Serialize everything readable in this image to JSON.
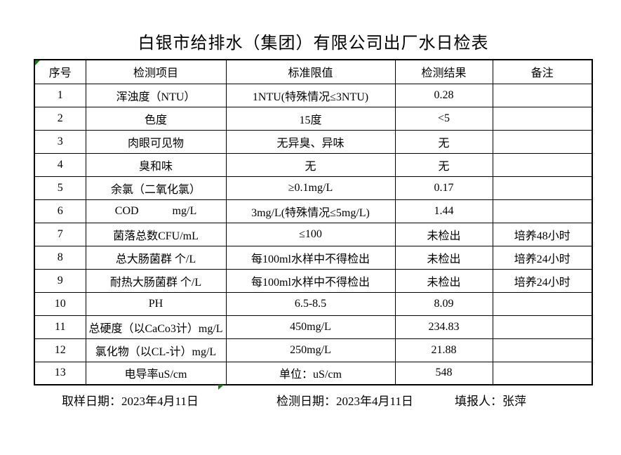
{
  "title": "白银市给排水（集团）有限公司出厂水日检表",
  "table": {
    "headers": [
      "序号",
      "检测项目",
      "标准限值",
      "检测结果",
      "备注"
    ],
    "rows": [
      {
        "no": "1",
        "item": "浑浊度（NTU）",
        "limit": "1NTU(特殊情况≤3NTU)",
        "result": "0.28",
        "note": ""
      },
      {
        "no": "2",
        "item": "色度",
        "limit": "15度",
        "result": "<5",
        "note": ""
      },
      {
        "no": "3",
        "item": "肉眼可见物",
        "limit": "无异臭、异味",
        "result": "无",
        "note": ""
      },
      {
        "no": "4",
        "item": "臭和味",
        "limit": "无",
        "result": "无",
        "note": ""
      },
      {
        "no": "5",
        "item": "余氯（二氧化氯）",
        "limit": "≥0.1mg/L",
        "result": "0.17",
        "note": ""
      },
      {
        "no": "6",
        "item": "COD            mg/L",
        "limit": "3mg/L(特殊情况≤5mg/L)",
        "result": "1.44",
        "note": ""
      },
      {
        "no": "7",
        "item": "菌落总数CFU/mL",
        "limit": "≤100",
        "result": "未检出",
        "note": "培养48小时"
      },
      {
        "no": "8",
        "item": "总大肠菌群 个/L",
        "limit": "每100ml水样中不得检出",
        "result": "未检出",
        "note": "培养24小时"
      },
      {
        "no": "9",
        "item": "耐热大肠菌群 个/L",
        "limit": "每100ml水样中不得检出",
        "result": "未检出",
        "note": "培养24小时"
      },
      {
        "no": "10",
        "item": "PH",
        "limit": "6.5-8.5",
        "result": "8.09",
        "note": ""
      },
      {
        "no": "11",
        "item": "总硬度（以CaCo3计）mg/L",
        "limit": "450mg/L",
        "result": "234.83",
        "note": ""
      },
      {
        "no": "12",
        "item": "氯化物（以CL-计）mg/L",
        "limit": "250mg/L",
        "result": "21.88",
        "note": ""
      },
      {
        "no": "13",
        "item": "电导率uS/cm",
        "limit": "单位：uS/cm",
        "result": "548",
        "note": ""
      }
    ]
  },
  "footer": {
    "sampling_date": "取样日期：2023年4月11日",
    "test_date": "检测日期：2023年4月11日",
    "reporter": "填报人：张萍"
  },
  "colors": {
    "marker_green": "#1a7a1a",
    "border": "#000000",
    "background": "#ffffff"
  }
}
